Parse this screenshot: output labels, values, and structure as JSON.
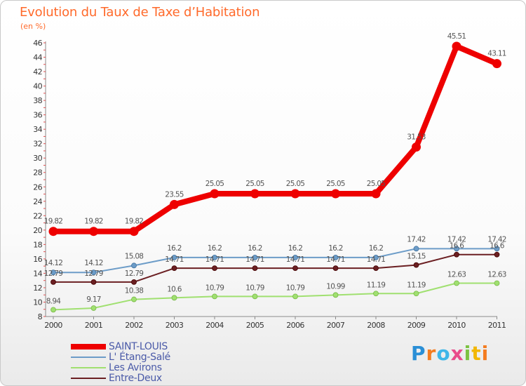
{
  "header": {
    "title": "Evolution du Taux de Taxe d’Habitation",
    "subtitle": "(en %)"
  },
  "logo": {
    "text": "Proxiti"
  },
  "chart_data": {
    "type": "line",
    "title": "Evolution du Taux de Taxe d’Habitation",
    "subtitle": "(en %)",
    "xlabel": "",
    "ylabel": "",
    "ylim": [
      8,
      46
    ],
    "y_ticks": [
      8,
      10,
      12,
      14,
      16,
      18,
      20,
      22,
      24,
      26,
      28,
      30,
      32,
      34,
      36,
      38,
      40,
      42,
      44,
      46
    ],
    "grid": false,
    "legend_position": "bottom-left",
    "categories": [
      "2000",
      "2001",
      "2002",
      "2003",
      "2004",
      "2005",
      "2006",
      "2007",
      "2008",
      "2009",
      "2010",
      "2011"
    ],
    "series": [
      {
        "name": "SAINT-LOUIS",
        "color": "#ee0000",
        "values": [
          19.82,
          19.82,
          19.82,
          23.55,
          25.05,
          25.05,
          25.05,
          25.05,
          25.05,
          31.53,
          45.51,
          43.11
        ],
        "labels": [
          "19.82",
          "19.82",
          "19.82",
          "23.55",
          "25.05",
          "25.05",
          "25.05",
          "25.05",
          "25.05",
          "31.53",
          "45.51",
          "43.11"
        ]
      },
      {
        "name": "L' Étang-Salé",
        "color": "#6c9cc8",
        "values": [
          14.12,
          14.12,
          15.08,
          16.2,
          16.2,
          16.2,
          16.2,
          16.2,
          16.2,
          17.42,
          17.42,
          17.42
        ],
        "labels": [
          "14.12",
          "14.12",
          "15.08",
          "16.2",
          "16.2",
          "16.2",
          "16.2",
          "16.2",
          "16.2",
          "17.42",
          "17.42",
          "17.42"
        ]
      },
      {
        "name": "Les Avirons",
        "color": "#a0e070",
        "values": [
          8.94,
          9.17,
          10.38,
          10.6,
          10.79,
          10.79,
          10.79,
          10.99,
          11.19,
          11.19,
          12.63,
          12.63
        ],
        "labels": [
          "8.94",
          "9.17",
          "10.38",
          "10.6",
          "10.79",
          "10.79",
          "10.79",
          "10.99",
          "11.19",
          "11.19",
          "12.63",
          "12.63"
        ]
      },
      {
        "name": "Entre-Deux",
        "color": "#6b1f22",
        "values": [
          12.79,
          12.79,
          12.79,
          14.71,
          14.71,
          14.71,
          14.71,
          14.71,
          14.71,
          15.15,
          16.6,
          16.6
        ],
        "labels": [
          "12.79",
          "12.79",
          "12.79",
          "14.71",
          "14.71",
          "14.71",
          "14.71",
          "14.71",
          "14.71",
          "15.15",
          "16.6",
          "16.6"
        ]
      }
    ]
  }
}
